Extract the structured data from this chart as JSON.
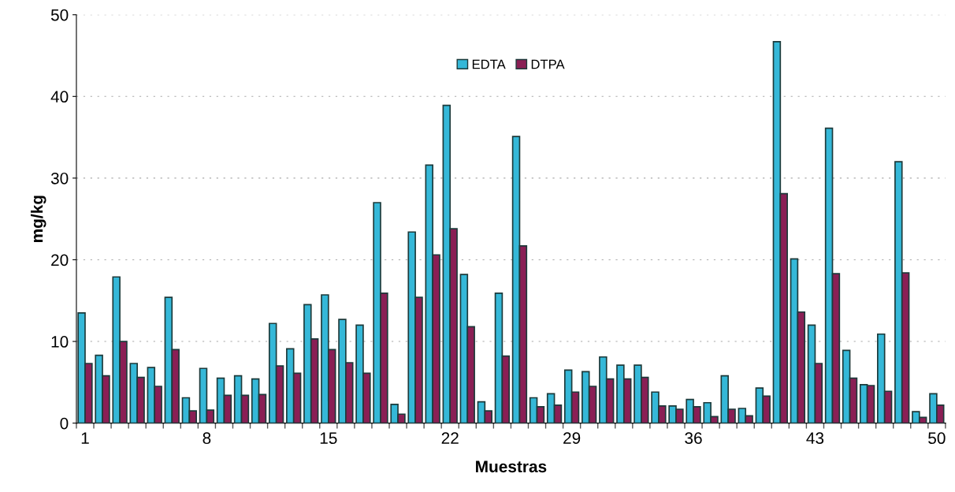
{
  "chart_data": {
    "type": "bar",
    "xlabel": "Muestras",
    "ylabel": "mg/kg",
    "categories": [
      "1",
      null,
      null,
      null,
      null,
      null,
      null,
      "8",
      null,
      null,
      null,
      null,
      null,
      null,
      "15",
      null,
      null,
      null,
      null,
      null,
      null,
      "22",
      null,
      null,
      null,
      null,
      null,
      null,
      "29",
      null,
      null,
      null,
      null,
      null,
      null,
      "36",
      null,
      null,
      null,
      null,
      null,
      null,
      "43",
      null,
      null,
      null,
      null,
      null,
      null,
      "50"
    ],
    "series": [
      {
        "name": "EDTA",
        "color": "#35b8d8",
        "values": [
          13.5,
          8.3,
          17.9,
          7.3,
          6.8,
          15.4,
          3.1,
          6.7,
          5.5,
          5.8,
          5.4,
          12.2,
          9.1,
          14.5,
          15.7,
          12.7,
          12.0,
          27.0,
          2.3,
          23.4,
          31.6,
          38.9,
          18.2,
          2.6,
          15.9,
          35.1,
          3.1,
          3.6,
          6.5,
          6.3,
          8.1,
          7.1,
          7.1,
          3.8,
          2.1,
          2.9,
          2.5,
          5.8,
          1.8,
          4.3,
          46.7,
          20.1,
          12.0,
          36.1,
          8.9,
          4.7,
          10.9,
          32.0,
          1.4,
          3.6
        ]
      },
      {
        "name": "DTPA",
        "color": "#8a1f55",
        "values": [
          7.3,
          5.8,
          10.0,
          5.6,
          4.5,
          9.0,
          1.5,
          1.6,
          3.4,
          3.4,
          3.5,
          7.0,
          6.1,
          10.3,
          9.0,
          7.4,
          6.1,
          15.9,
          1.1,
          15.4,
          20.6,
          23.8,
          11.8,
          1.5,
          8.2,
          21.7,
          2.0,
          2.2,
          3.8,
          4.5,
          5.4,
          5.4,
          5.6,
          2.1,
          1.7,
          2.0,
          0.8,
          1.7,
          0.9,
          3.3,
          28.1,
          13.6,
          7.3,
          18.3,
          5.5,
          4.6,
          3.9,
          18.4,
          0.7,
          2.2
        ]
      }
    ],
    "ylim": [
      0,
      50
    ],
    "yticks": [
      0,
      10,
      20,
      30,
      40,
      50
    ],
    "grid": "y",
    "legend": "top"
  }
}
